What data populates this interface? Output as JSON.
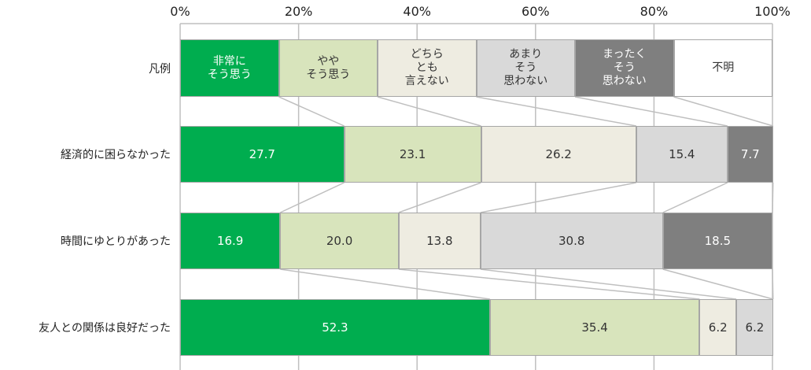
{
  "chart_data": {
    "type": "stacked_bar_100",
    "legend_label": "凡例",
    "categories": [
      "経済的に困らなかった",
      "時間にゆとりがあった",
      "友人との関係は良好だった"
    ],
    "series": [
      {
        "name": "非常に\nそう思う",
        "color": "#00ad4f",
        "values": [
          27.7,
          16.9,
          52.3
        ]
      },
      {
        "name": "やや\nそう思う",
        "color": "#d8e4bc",
        "values": [
          23.1,
          20.0,
          35.4
        ],
        "value_labels": [
          "23.1",
          "20.0",
          "35.4"
        ]
      },
      {
        "name": "どちら\nとも\n言えない",
        "color": "#eeece1",
        "values": [
          26.2,
          13.8,
          6.2
        ]
      },
      {
        "name": "あまり\nそう\n思わない",
        "color": "#d9d9d9",
        "values": [
          15.4,
          30.8,
          6.2
        ]
      },
      {
        "name": "まったく\nそう\n思わない",
        "color": "#7f7f7f",
        "values": [
          7.7,
          18.5,
          null
        ]
      },
      {
        "name": "不明",
        "color": "#ffffff",
        "values": [
          null,
          null,
          null
        ]
      }
    ],
    "xlim": [
      0,
      100
    ],
    "xticks": [
      {
        "value": 0,
        "label": "0%"
      },
      {
        "value": 20,
        "label": "20%"
      },
      {
        "value": 40,
        "label": "40%"
      },
      {
        "value": 60,
        "label": "60%"
      },
      {
        "value": 80,
        "label": "80%"
      },
      {
        "value": 100,
        "label": "100%"
      }
    ],
    "grid": true
  }
}
